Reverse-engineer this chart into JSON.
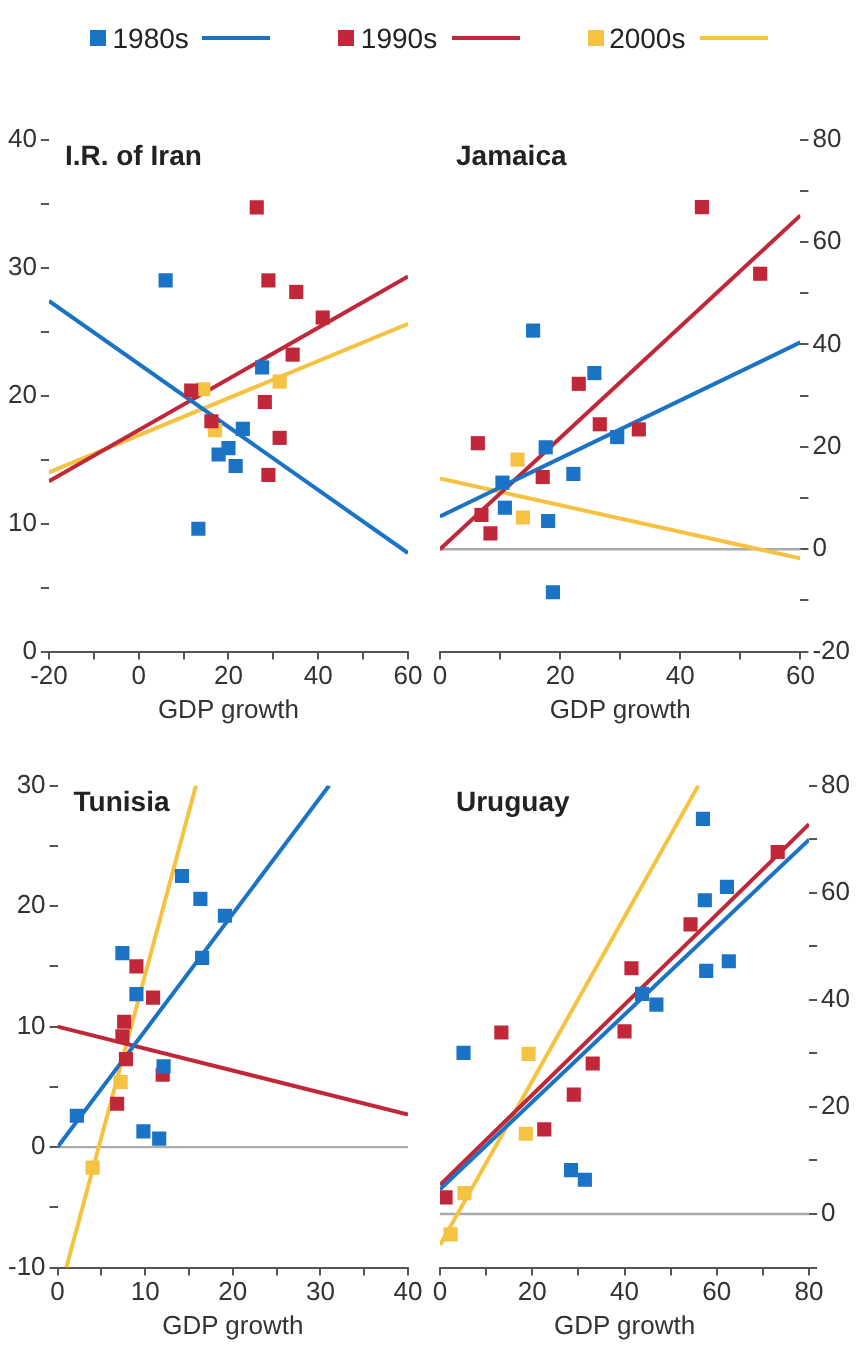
{
  "chart_data": [
    {
      "type": "scatter",
      "title": "I.R. of Iran",
      "xlabel": "GDP growth",
      "marker": "square",
      "grid": false,
      "legend": "top",
      "xlim": [
        -20,
        60
      ],
      "xticks": [
        -20,
        {
          "value": -10,
          "label": null
        },
        0,
        {
          "value": 10,
          "label": null
        },
        20,
        {
          "value": 30,
          "label": null
        },
        40,
        {
          "value": 50,
          "label": null
        },
        60
      ],
      "ylim": [
        0,
        40
      ],
      "yticks": [
        0,
        {
          "value": 5,
          "label": null
        },
        10,
        {
          "value": 15,
          "label": null
        },
        20,
        {
          "value": 25,
          "label": null
        },
        30,
        {
          "value": 35,
          "label": null
        },
        40
      ],
      "series": [
        {
          "name": "1980s",
          "color": "#1a73c4",
          "x": [
            6,
            13.3,
            27.5,
            23.2,
            17.8,
            20,
            21.6
          ],
          "values": [
            29,
            9.6,
            22.2,
            17.4,
            15.4,
            15.9,
            14.5
          ]
        },
        {
          "name": "1990s",
          "color": "#c0283a",
          "x": [
            26.3,
            28.9,
            35.1,
            41,
            34.3,
            28.1,
            31.4,
            28.9,
            11.7,
            16.2
          ],
          "values": [
            34.7,
            29,
            28.1,
            26.1,
            23.2,
            19.5,
            16.7,
            13.8,
            20.4,
            18
          ]
        },
        {
          "name": "2000s",
          "color": "#f5c242",
          "x": [
            14.4,
            31.4,
            17
          ],
          "values": [
            20.5,
            21.1,
            17.3
          ]
        },
        {
          "type": "line",
          "marker": "none",
          "color": "#1a73c4",
          "x": [
            -20,
            60
          ],
          "values": [
            27.4,
            7.7
          ]
        },
        {
          "type": "line",
          "marker": "none",
          "color": "#c0283a",
          "x": [
            -20,
            60
          ],
          "values": [
            13.3,
            29.3
          ]
        },
        {
          "type": "line",
          "marker": "none",
          "color": "#f5c242",
          "x": [
            -20,
            60
          ],
          "values": [
            14,
            25.6
          ]
        }
      ]
    },
    {
      "type": "scatter",
      "title": "Jamaica",
      "xlabel": "GDP growth",
      "marker": "square",
      "grid": false,
      "xlim": [
        0,
        60
      ],
      "xticks": [
        0,
        {
          "value": 10,
          "label": null
        },
        20,
        {
          "value": 30,
          "label": null
        },
        40,
        {
          "value": 50,
          "label": null
        },
        60
      ],
      "ylim": [
        -20,
        80
      ],
      "yticks": [
        -20,
        {
          "value": -10,
          "label": null
        },
        0,
        {
          "value": 10,
          "label": null
        },
        20,
        {
          "value": 30,
          "label": null
        },
        40,
        {
          "value": 50,
          "label": null
        },
        60,
        {
          "value": 70,
          "label": null
        },
        80
      ],
      "ref_lines": [
        {
          "axis": "y",
          "value": 0,
          "color": "#aaaaaa"
        }
      ],
      "series": [
        {
          "color": "#1a73c4",
          "x": [
            15.5,
            25.7,
            17.6,
            10.4,
            10.8,
            22.2,
            29.5,
            18,
            18.8
          ],
          "values": [
            42.7,
            34.4,
            19.9,
            13,
            8.1,
            14.7,
            21.9,
            5.5,
            -8.4
          ]
        },
        {
          "color": "#c0283a",
          "x": [
            43.6,
            53.3,
            23.1,
            26.6,
            33.1,
            6.3,
            17.1,
            6.9,
            8.4
          ],
          "values": [
            66.8,
            53.8,
            32.3,
            24.4,
            23.4,
            20.7,
            14.1,
            6.7,
            3.1
          ]
        },
        {
          "color": "#f5c242",
          "x": [
            12.9,
            13.8
          ],
          "values": [
            17.5,
            6.2
          ]
        },
        {
          "type": "line",
          "marker": "none",
          "color": "#1a73c4",
          "x": [
            0,
            60
          ],
          "values": [
            6.4,
            40.4
          ]
        },
        {
          "type": "line",
          "marker": "none",
          "color": "#c0283a",
          "x": [
            0,
            60
          ],
          "values": [
            0,
            65.2
          ]
        },
        {
          "type": "line",
          "marker": "none",
          "color": "#f5c242",
          "x": [
            0,
            60
          ],
          "values": [
            13.8,
            -1.8
          ]
        }
      ]
    },
    {
      "type": "scatter",
      "title": "Tunisia",
      "xlabel": "GDP growth",
      "marker": "square",
      "grid": false,
      "xlim": [
        0,
        40
      ],
      "xticks": [
        0,
        {
          "value": 5,
          "label": null
        },
        10,
        {
          "value": 15,
          "label": null
        },
        20,
        {
          "value": 25,
          "label": null
        },
        30,
        {
          "value": 35,
          "label": null
        },
        40
      ],
      "ylim": [
        -10,
        30
      ],
      "yticks": [
        -10,
        {
          "value": -5,
          "label": null
        },
        0,
        {
          "value": 5,
          "label": null
        },
        10,
        {
          "value": 15,
          "label": null
        },
        20,
        {
          "value": 25,
          "label": null
        },
        30
      ],
      "ref_lines": [
        {
          "axis": "y",
          "value": 0,
          "color": "#aaaaaa"
        }
      ],
      "series": [
        {
          "color": "#1a73c4",
          "x": [
            2.2,
            7.4,
            9,
            14.2,
            16.3,
            16.5,
            19.1,
            9.8,
            11.6,
            12.1
          ],
          "values": [
            2.6,
            16.1,
            12.7,
            22.5,
            20.6,
            15.7,
            19.2,
            1.3,
            0.7,
            6.7
          ]
        },
        {
          "color": "#c0283a",
          "x": [
            9,
            10.9,
            7.6,
            7.4,
            7.8,
            6.8,
            12
          ],
          "values": [
            15,
            12.4,
            10.4,
            9.2,
            7.3,
            3.6,
            6
          ]
        },
        {
          "color": "#f5c242",
          "x": [
            4,
            7.2
          ],
          "values": [
            -1.7,
            5.4
          ]
        },
        {
          "type": "line",
          "marker": "none",
          "color": "#1a73c4",
          "x": [
            0,
            31
          ],
          "values": [
            0,
            30
          ]
        },
        {
          "type": "line",
          "marker": "none",
          "color": "#c0283a",
          "x": [
            0,
            40
          ],
          "values": [
            10,
            2.7
          ]
        },
        {
          "type": "line",
          "marker": "none",
          "color": "#f5c242",
          "x": [
            1,
            15.8
          ],
          "values": [
            -10,
            30
          ]
        }
      ]
    },
    {
      "type": "scatter",
      "title": "Uruguay",
      "xlabel": "GDP growth",
      "marker": "square",
      "grid": false,
      "xlim": [
        0,
        80
      ],
      "xticks": [
        0,
        {
          "value": 10,
          "label": null
        },
        20,
        {
          "value": 30,
          "label": null
        },
        40,
        {
          "value": 50,
          "label": null
        },
        60,
        {
          "value": 70,
          "label": null
        },
        80
      ],
      "ylim": [
        -10,
        80
      ],
      "yticks": [
        {
          "value": -10,
          "label": null
        },
        0,
        {
          "value": 10,
          "label": null
        },
        20,
        {
          "value": 30,
          "label": null
        },
        40,
        {
          "value": 50,
          "label": null
        },
        60,
        {
          "value": 70,
          "label": null
        },
        80
      ],
      "ref_lines": [
        {
          "axis": "y",
          "value": 0,
          "color": "#aaaaaa"
        }
      ],
      "series": [
        {
          "color": "#1a73c4",
          "x": [
            57,
            5.1,
            57.4,
            62.2,
            57.7,
            62.6,
            43.8,
            46.9,
            28.4,
            31.4
          ],
          "values": [
            73.8,
            30.1,
            58.6,
            61.1,
            45.4,
            47.2,
            41.1,
            39.1,
            8.2,
            6.4
          ]
        },
        {
          "color": "#c0283a",
          "x": [
            1.2,
            13.3,
            22.6,
            29,
            33.1,
            40,
            41.5,
            54.3,
            73.2
          ],
          "values": [
            3.1,
            33.9,
            15.8,
            22.3,
            28.1,
            34.1,
            45.9,
            54.1,
            67.6
          ]
        },
        {
          "color": "#f5c242",
          "x": [
            19.2,
            18.6,
            5.3,
            2.3
          ],
          "values": [
            29.9,
            15,
            3.9,
            -3.8
          ]
        },
        {
          "type": "line",
          "marker": "none",
          "color": "#1a73c4",
          "x": [
            0,
            80
          ],
          "values": [
            4.6,
            69.9
          ]
        },
        {
          "type": "line",
          "marker": "none",
          "color": "#c0283a",
          "x": [
            0,
            80
          ],
          "values": [
            5.4,
            72.8
          ]
        },
        {
          "type": "line",
          "marker": "none",
          "color": "#f5c242",
          "x": [
            0,
            56
          ],
          "values": [
            -5.8,
            80
          ]
        }
      ]
    }
  ]
}
